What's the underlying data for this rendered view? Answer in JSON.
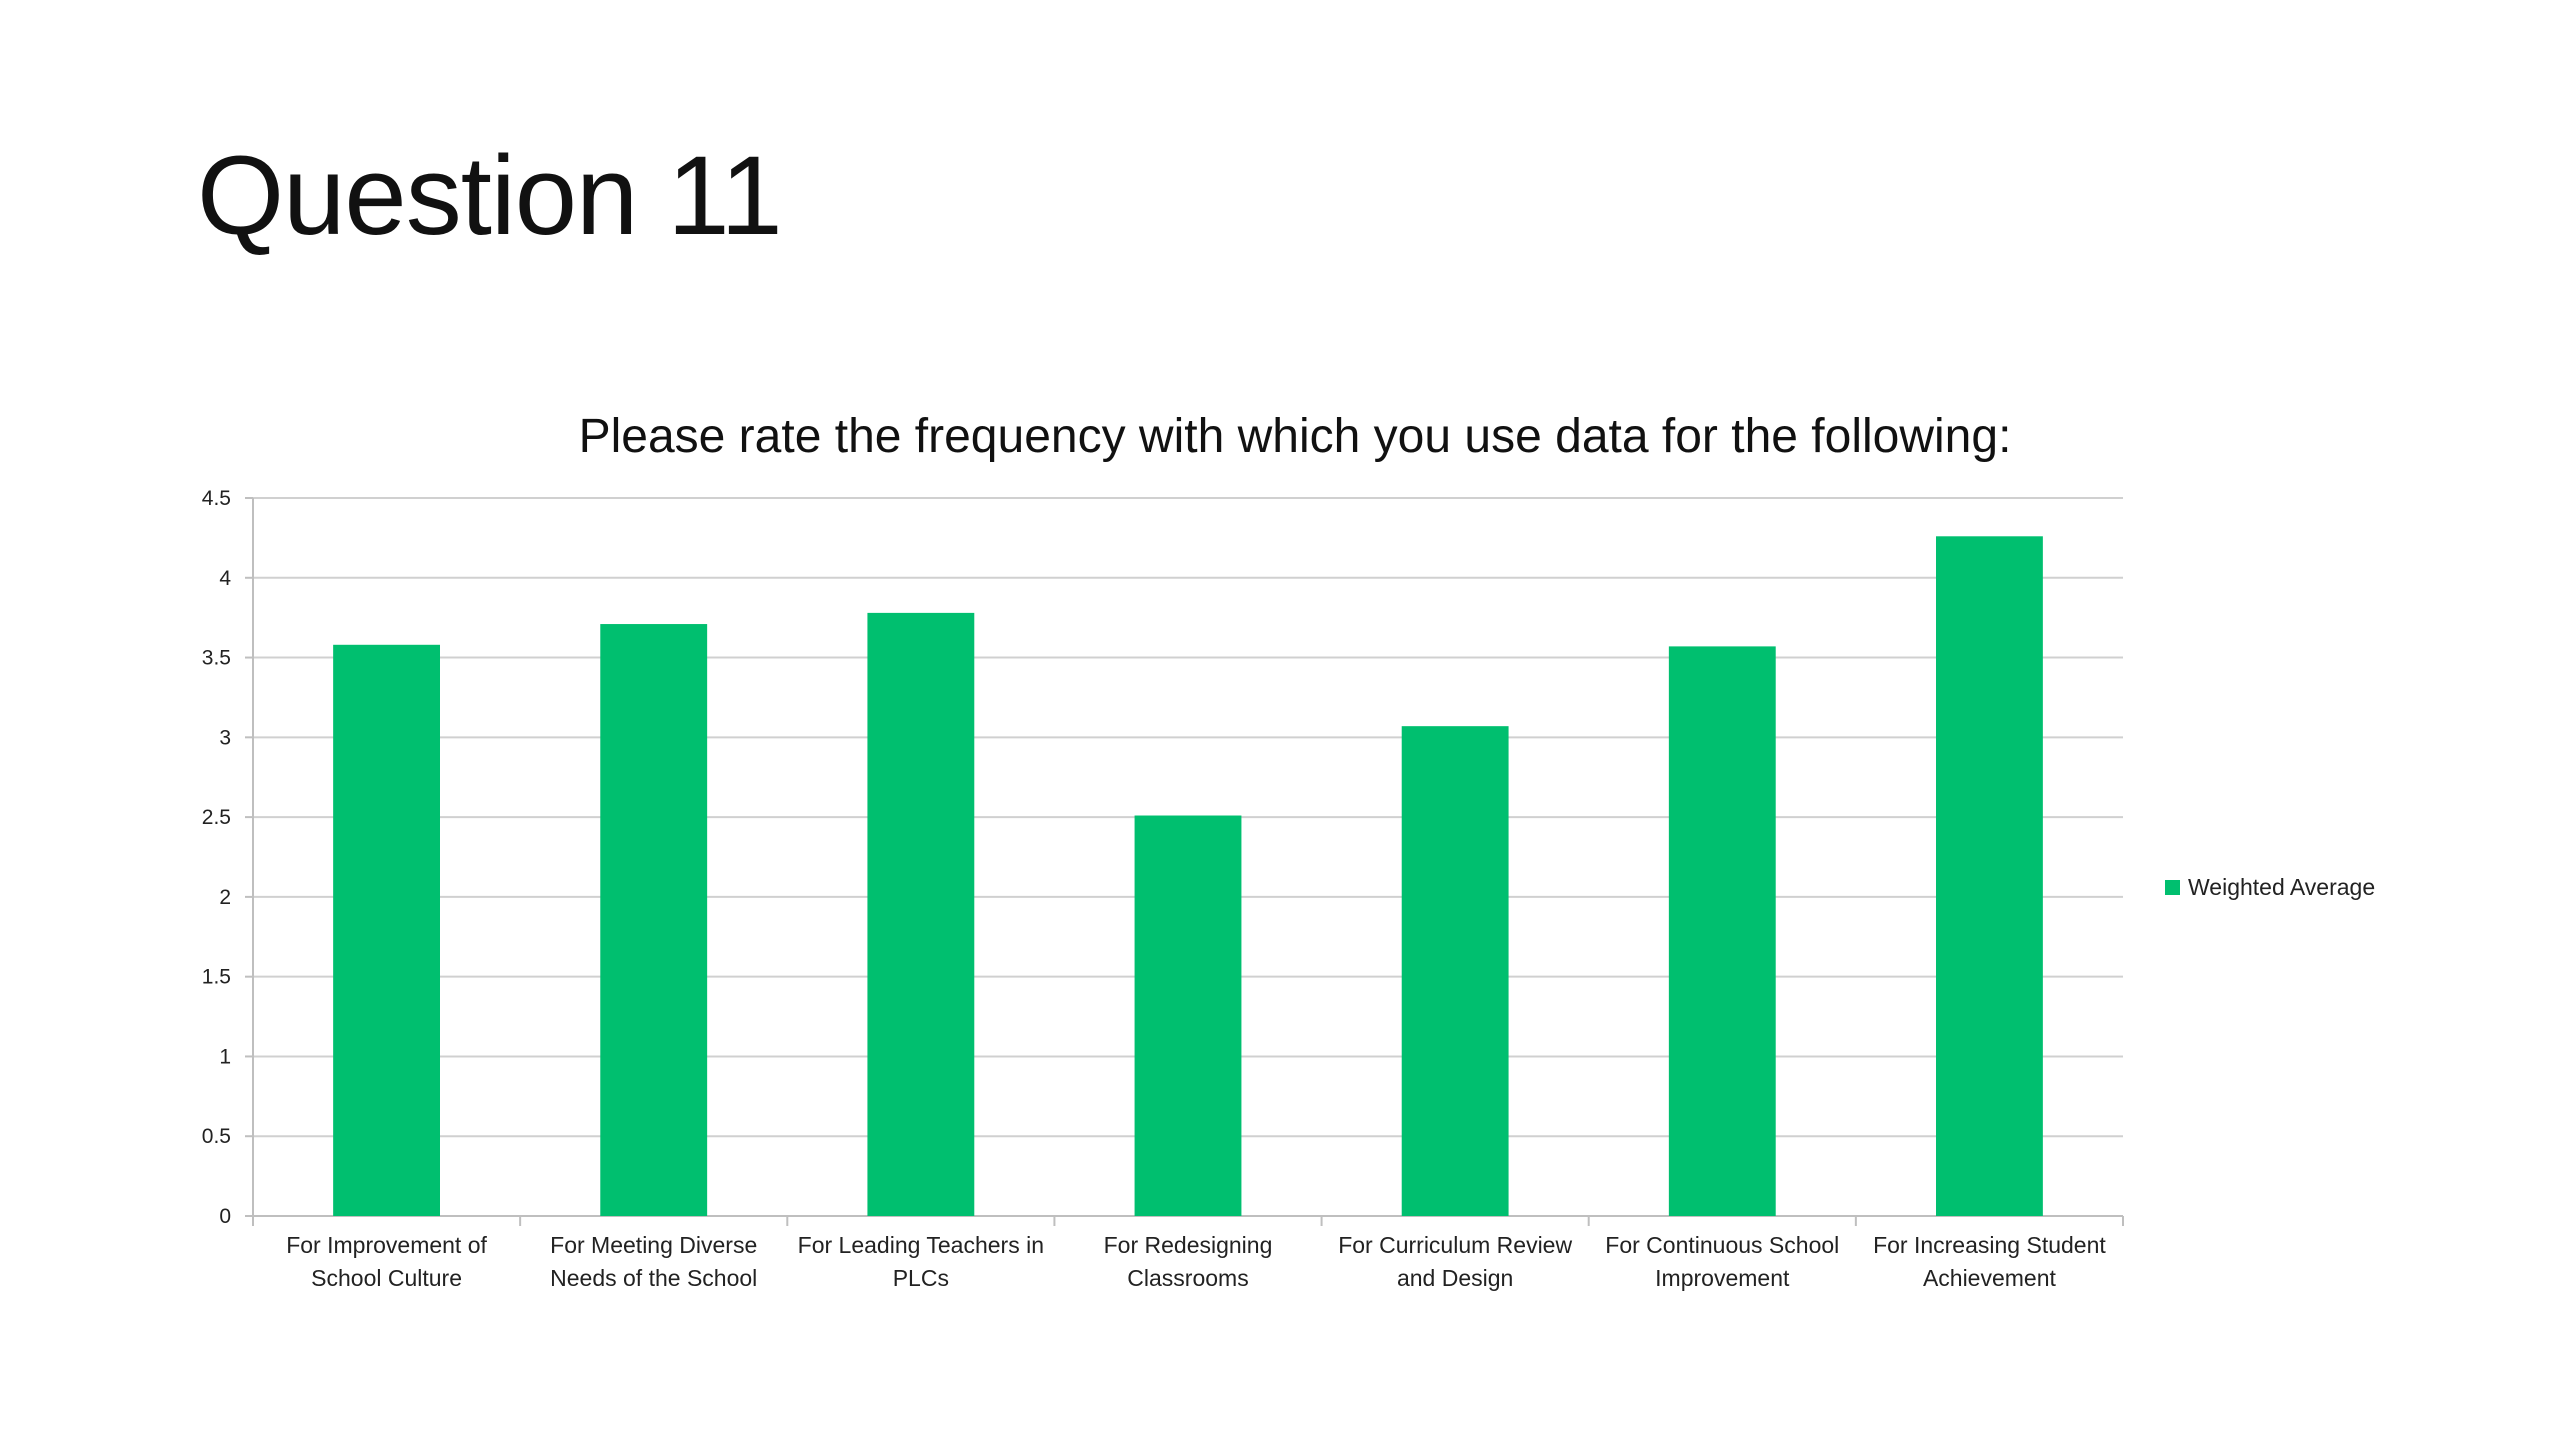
{
  "slide": {
    "title": "Question 11"
  },
  "chart_data": {
    "type": "bar",
    "title": "Please rate the frequency with which you use data for the following:",
    "categories": [
      [
        "For Improvement of",
        "School Culture"
      ],
      [
        "For Meeting Diverse",
        "Needs of the School"
      ],
      [
        "For Leading Teachers in",
        "PLCs"
      ],
      [
        "For Redesigning",
        "Classrooms"
      ],
      [
        "For Curriculum Review",
        "and Design"
      ],
      [
        "For Continuous School",
        "Improvement"
      ],
      [
        "For Increasing Student",
        "Achievement"
      ]
    ],
    "series": [
      {
        "name": "Weighted Average",
        "color": "#00BF6F",
        "values": [
          3.58,
          3.71,
          3.78,
          2.51,
          3.07,
          3.57,
          4.26
        ]
      }
    ],
    "ylim": [
      0,
      4.5
    ],
    "yticks": [
      "0",
      "0.5",
      "1",
      "1.5",
      "2",
      "2.5",
      "3",
      "3.5",
      "4",
      "4.5"
    ],
    "grid": true,
    "legend_position": "right"
  }
}
